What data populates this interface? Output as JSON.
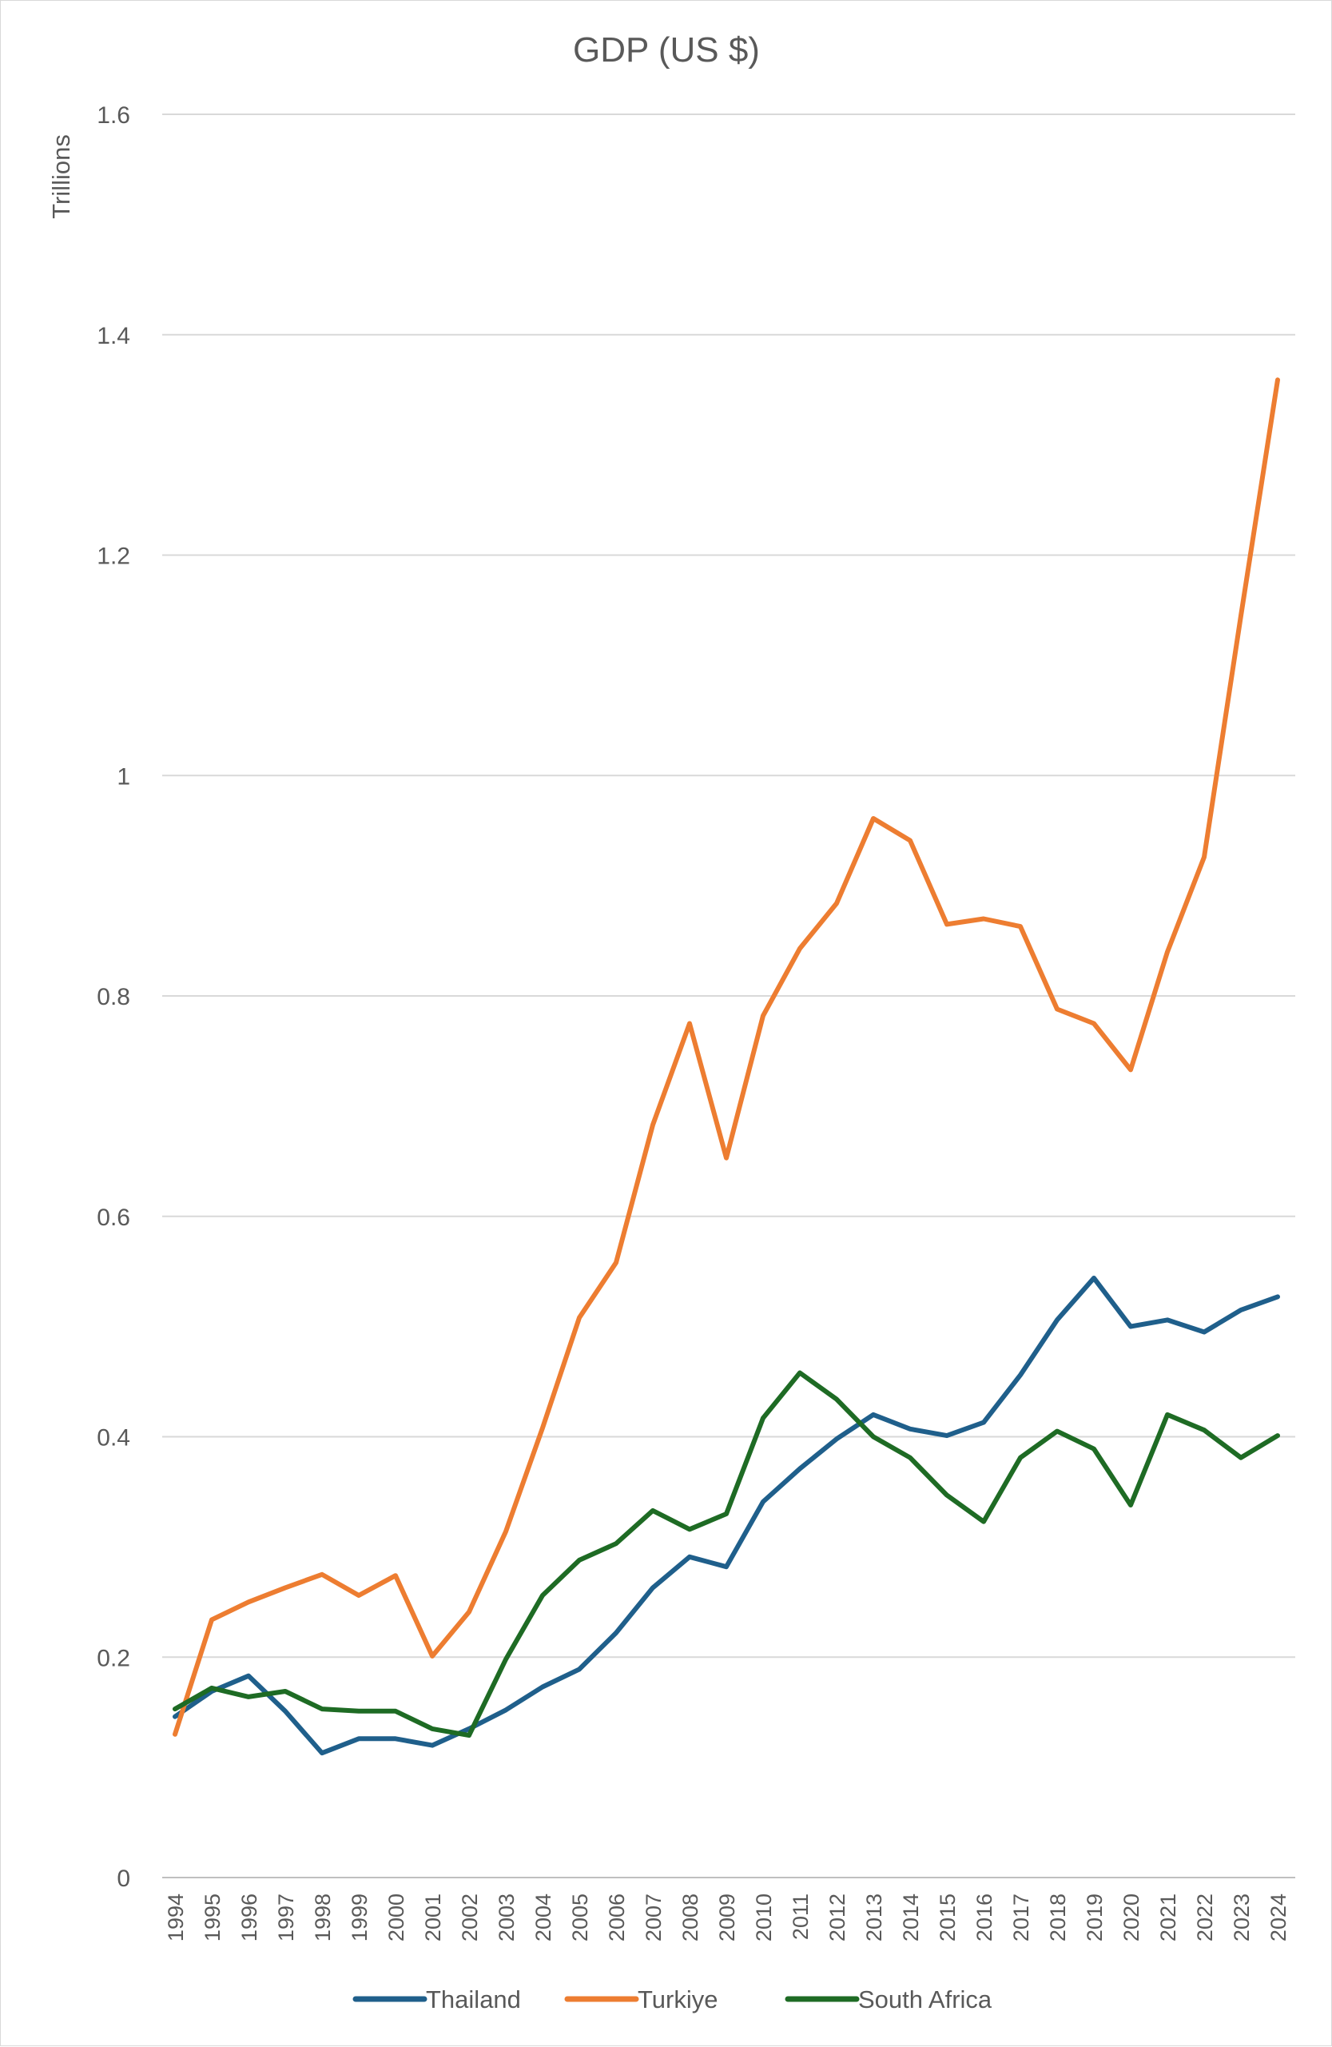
{
  "chart_data": {
    "type": "line",
    "title": "GDP (US $)",
    "xlabel": "",
    "ylabel": "Trillions",
    "ylim": [
      0,
      1.6
    ],
    "yticks": [
      0,
      0.2,
      0.4,
      0.6,
      0.8,
      1,
      1.2,
      1.4,
      1.6
    ],
    "ytick_labels": [
      "0",
      "0.2",
      "0.4",
      "0.6",
      "0.8",
      "1",
      "1.2",
      "1.4",
      "1.6"
    ],
    "grid": true,
    "legend_position": "bottom",
    "categories": [
      "1994",
      "1995",
      "1996",
      "1997",
      "1998",
      "1999",
      "2000",
      "2001",
      "2002",
      "2003",
      "2004",
      "2005",
      "2006",
      "2007",
      "2008",
      "2009",
      "2010",
      "2011",
      "2012",
      "2013",
      "2014",
      "2015",
      "2016",
      "2017",
      "2018",
      "2019",
      "2020",
      "2021",
      "2022",
      "2023",
      "2024"
    ],
    "series": [
      {
        "name": "Thailand",
        "color": "#1f5f8b",
        "values": [
          0.146,
          0.169,
          0.183,
          0.151,
          0.113,
          0.126,
          0.126,
          0.12,
          0.135,
          0.152,
          0.173,
          0.189,
          0.222,
          0.263,
          0.291,
          0.282,
          0.341,
          0.371,
          0.398,
          0.42,
          0.407,
          0.401,
          0.413,
          0.456,
          0.506,
          0.544,
          0.5,
          0.506,
          0.495,
          0.515,
          0.527
        ]
      },
      {
        "name": "Turkiye",
        "color": "#ed7d31",
        "values": [
          0.13,
          0.234,
          0.25,
          0.263,
          0.275,
          0.256,
          0.274,
          0.201,
          0.241,
          0.314,
          0.408,
          0.508,
          0.558,
          0.683,
          0.775,
          0.653,
          0.782,
          0.843,
          0.884,
          0.961,
          0.941,
          0.865,
          0.87,
          0.863,
          0.788,
          0.775,
          0.733,
          0.84,
          0.926,
          1.145,
          1.359
        ]
      },
      {
        "name": "South Africa",
        "color": "#1e6b24",
        "values": [
          0.153,
          0.172,
          0.164,
          0.169,
          0.153,
          0.151,
          0.151,
          0.135,
          0.129,
          0.198,
          0.256,
          0.288,
          0.303,
          0.333,
          0.316,
          0.33,
          0.417,
          0.458,
          0.434,
          0.4,
          0.381,
          0.347,
          0.323,
          0.381,
          0.405,
          0.389,
          0.338,
          0.42,
          0.406,
          0.381,
          0.401
        ]
      }
    ]
  }
}
